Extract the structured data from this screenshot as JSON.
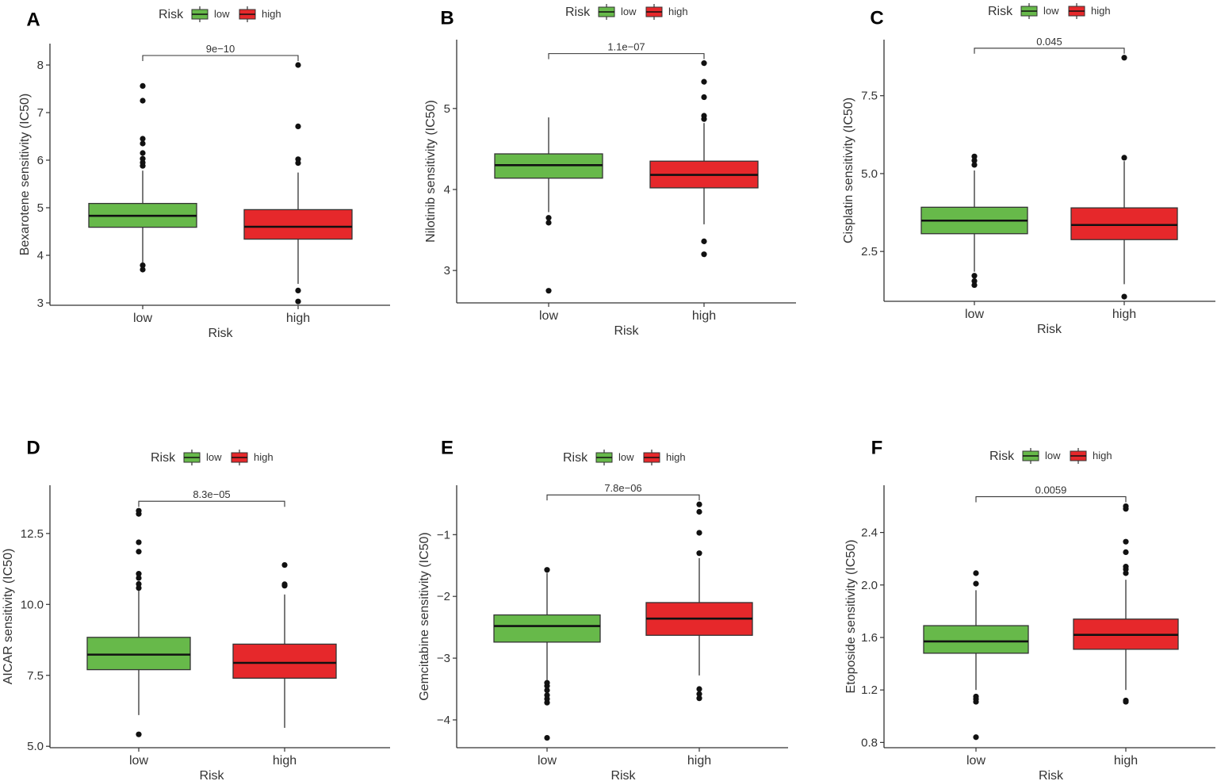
{
  "legend": {
    "title": "Risk",
    "low_label": "low",
    "high_label": "high"
  },
  "colors": {
    "low": "#67b94a",
    "high": "#e6282b",
    "axis": "#333333",
    "median": "#111111",
    "outlier": "#111111"
  },
  "chart_data": [
    {
      "panel": "A",
      "type": "box",
      "xlabel": "Risk",
      "ylabel": "Bexarotene sensitivity (IC50)",
      "categories": [
        "low",
        "high"
      ],
      "ylim": [
        2.95,
        8.45
      ],
      "yticks": [
        3,
        4,
        5,
        6,
        7,
        8
      ],
      "yticklabels": [
        "3",
        "4",
        "5",
        "6",
        "7",
        "8"
      ],
      "pvalue": "9e−10",
      "boxes": [
        {
          "group": "low",
          "q1": 4.59,
          "median": 4.83,
          "q3": 5.09,
          "whisker_low": 3.85,
          "whisker_high": 5.78,
          "outliers": [
            3.7,
            3.79,
            5.88,
            5.95,
            6.03,
            6.15,
            6.35,
            6.45,
            7.25,
            7.56
          ]
        },
        {
          "group": "high",
          "q1": 4.34,
          "median": 4.6,
          "q3": 4.96,
          "whisker_low": 3.4,
          "whisker_high": 5.74,
          "outliers": [
            3.03,
            3.26,
            5.94,
            6.02,
            6.71,
            8.0
          ]
        }
      ]
    },
    {
      "panel": "B",
      "type": "box",
      "xlabel": "Risk",
      "ylabel": "Nilotinib sensitivity (IC50)",
      "categories": [
        "low",
        "high"
      ],
      "ylim": [
        2.6,
        5.85
      ],
      "yticks": [
        3,
        4,
        5
      ],
      "yticklabels": [
        "3",
        "4",
        "5"
      ],
      "pvalue": "1.1e−07",
      "boxes": [
        {
          "group": "low",
          "q1": 4.14,
          "median": 4.3,
          "q3": 4.44,
          "whisker_low": 3.72,
          "whisker_high": 4.89,
          "outliers": [
            2.75,
            3.59,
            3.65
          ]
        },
        {
          "group": "high",
          "q1": 4.02,
          "median": 4.18,
          "q3": 4.35,
          "whisker_low": 3.57,
          "whisker_high": 4.82,
          "outliers": [
            3.2,
            3.36,
            4.87,
            4.91,
            5.14,
            5.33,
            5.56
          ]
        }
      ]
    },
    {
      "panel": "C",
      "type": "box",
      "xlabel": "Risk",
      "ylabel": "Cisplatin sensitivity (IC50)",
      "categories": [
        "low",
        "high"
      ],
      "ylim": [
        0.9,
        9.3
      ],
      "yticks": [
        2.5,
        5.0,
        7.5
      ],
      "yticklabels": [
        "2.5",
        "5.0",
        "7.5"
      ],
      "pvalue": "0.045",
      "boxes": [
        {
          "group": "low",
          "q1": 3.07,
          "median": 3.49,
          "q3": 3.92,
          "whisker_low": 1.85,
          "whisker_high": 5.1,
          "outliers": [
            1.42,
            1.55,
            1.72,
            5.28,
            5.42,
            5.55
          ]
        },
        {
          "group": "high",
          "q1": 2.88,
          "median": 3.35,
          "q3": 3.9,
          "whisker_low": 1.45,
          "whisker_high": 5.4,
          "outliers": [
            1.05,
            5.51,
            8.72
          ]
        }
      ]
    },
    {
      "panel": "D",
      "type": "box",
      "xlabel": "Risk",
      "ylabel": "AICAR sensitivity (IC50)",
      "categories": [
        "low",
        "high"
      ],
      "ylim": [
        4.95,
        14.2
      ],
      "yticks": [
        5.0,
        7.5,
        10.0,
        12.5
      ],
      "yticklabels": [
        "5.0",
        "7.5",
        "10.0",
        "12.5"
      ],
      "pvalue": "8.3e−05",
      "boxes": [
        {
          "group": "low",
          "q1": 7.7,
          "median": 8.23,
          "q3": 8.84,
          "whisker_low": 6.1,
          "whisker_high": 10.5,
          "outliers": [
            5.42,
            10.58,
            10.72,
            10.93,
            11.08,
            11.86,
            12.19,
            13.19,
            13.3
          ]
        },
        {
          "group": "high",
          "q1": 7.4,
          "median": 7.94,
          "q3": 8.6,
          "whisker_low": 5.65,
          "whisker_high": 10.35,
          "outliers": [
            10.66,
            10.71,
            11.39
          ]
        }
      ]
    },
    {
      "panel": "E",
      "type": "box",
      "xlabel": "Risk",
      "ylabel": "Gemcitabine sensitivity (IC50)",
      "categories": [
        "low",
        "high"
      ],
      "ylim": [
        -4.45,
        -0.2
      ],
      "yticks": [
        -4,
        -3,
        -2,
        -1
      ],
      "yticklabels": [
        "−4",
        "−3",
        "−2",
        "−1"
      ],
      "pvalue": "7.8e−06",
      "boxes": [
        {
          "group": "low",
          "q1": -2.74,
          "median": -2.48,
          "q3": -2.3,
          "whisker_low": -3.38,
          "whisker_high": -1.62,
          "outliers": [
            -4.29,
            -3.72,
            -3.66,
            -3.6,
            -3.52,
            -3.45,
            -3.4,
            -1.57
          ]
        },
        {
          "group": "high",
          "q1": -2.63,
          "median": -2.36,
          "q3": -2.1,
          "whisker_low": -3.28,
          "whisker_high": -1.38,
          "outliers": [
            -3.65,
            -3.58,
            -3.5,
            -1.3,
            -0.97,
            -0.63,
            -0.51
          ]
        }
      ]
    },
    {
      "panel": "F",
      "type": "box",
      "xlabel": "Risk",
      "ylabel": "Etoposide sensitivity (IC50)",
      "categories": [
        "low",
        "high"
      ],
      "ylim": [
        0.76,
        2.76
      ],
      "yticks": [
        0.8,
        1.2,
        1.6,
        2.0,
        2.4
      ],
      "yticklabels": [
        "0.8",
        "1.2",
        "1.6",
        "2.0",
        "2.4"
      ],
      "pvalue": "0.0059",
      "boxes": [
        {
          "group": "low",
          "q1": 1.48,
          "median": 1.57,
          "q3": 1.69,
          "whisker_low": 1.2,
          "whisker_high": 1.96,
          "outliers": [
            0.84,
            1.11,
            1.13,
            1.15,
            2.01,
            2.09
          ]
        },
        {
          "group": "high",
          "q1": 1.51,
          "median": 1.62,
          "q3": 1.74,
          "whisker_low": 1.2,
          "whisker_high": 2.04,
          "outliers": [
            1.11,
            1.12,
            2.09,
            2.12,
            2.14,
            2.25,
            2.33,
            2.58,
            2.6
          ]
        }
      ]
    }
  ]
}
